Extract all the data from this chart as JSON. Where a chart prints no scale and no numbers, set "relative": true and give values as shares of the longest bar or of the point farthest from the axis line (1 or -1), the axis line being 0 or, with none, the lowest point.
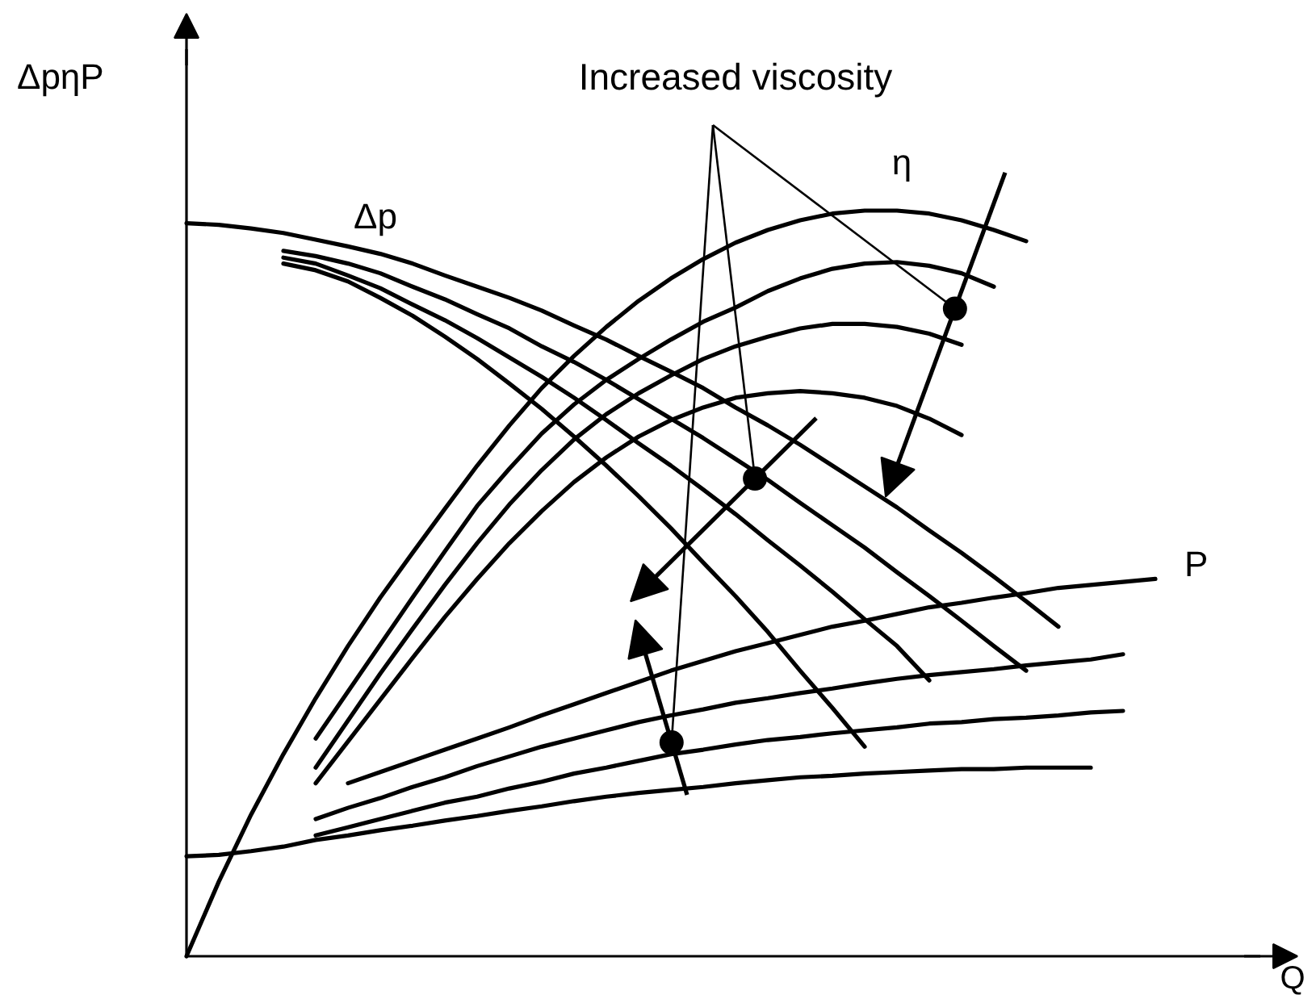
{
  "chart_data": {
    "type": "line",
    "relative": true,
    "ylabel": "ΔpηP",
    "xlabel": "Q",
    "annotations": [
      "Increased viscosity"
    ],
    "grid": false,
    "line_style": "solid",
    "categories": [
      null,
      null,
      null,
      null,
      null,
      null,
      null,
      null,
      null,
      null,
      null,
      null,
      null,
      null,
      null,
      null,
      null,
      null,
      null,
      null,
      null,
      null,
      null,
      null,
      null,
      null,
      null,
      null,
      null,
      null,
      null
    ],
    "series": [
      {
        "name": "Δp",
        "color": "#000000",
        "values": [
          0.983,
          0.981,
          0.976,
          0.97,
          0.961,
          0.952,
          0.942,
          0.929,
          0.913,
          0.898,
          0.883,
          0.866,
          0.846,
          0.827,
          0.805,
          0.784,
          0.762,
          0.736,
          0.712,
          0.686,
          0.658,
          0.63,
          0.602,
          0.571,
          0.541,
          0.509,
          0.476,
          0.442,
          null,
          null,
          null
        ]
      },
      {
        "color": "#000000",
        "values": [
          null,
          null,
          null,
          0.946,
          0.939,
          0.929,
          0.916,
          0.898,
          0.881,
          0.861,
          0.842,
          0.818,
          0.797,
          0.773,
          0.747,
          0.721,
          0.695,
          0.667,
          0.639,
          0.608,
          0.578,
          0.548,
          0.515,
          0.483,
          0.45,
          0.416,
          0.383,
          null,
          null,
          null,
          null
        ]
      },
      {
        "color": "#000000",
        "values": [
          null,
          null,
          null,
          0.937,
          0.929,
          0.913,
          0.896,
          0.874,
          0.853,
          0.829,
          0.803,
          0.777,
          0.749,
          0.719,
          0.688,
          0.658,
          0.626,
          0.593,
          0.558,
          0.524,
          0.489,
          0.452,
          0.416,
          0.37,
          null,
          null,
          null,
          null,
          null,
          null,
          null
        ]
      },
      {
        "color": "#000000",
        "values": [
          null,
          null,
          null,
          0.929,
          0.92,
          0.905,
          0.883,
          0.859,
          0.831,
          0.801,
          0.768,
          0.734,
          0.697,
          0.658,
          0.617,
          0.574,
          0.528,
          0.483,
          0.435,
          0.383,
          0.333,
          0.281,
          null,
          null,
          null,
          null,
          null,
          null,
          null,
          null,
          null
        ]
      },
      {
        "name": "η",
        "color": "#000000",
        "values": [
          0,
          0.1,
          0.19,
          0.271,
          0.346,
          0.416,
          0.481,
          0.541,
          0.6,
          0.658,
          0.712,
          0.762,
          0.805,
          0.844,
          0.879,
          0.909,
          0.935,
          0.957,
          0.974,
          0.987,
          0.996,
          1.0,
          1.0,
          0.996,
          0.987,
          0.974,
          0.959,
          null,
          null,
          null,
          null
        ]
      },
      {
        "color": "#000000",
        "values": [
          null,
          null,
          null,
          null,
          0.292,
          0.355,
          0.418,
          0.481,
          0.543,
          0.604,
          0.654,
          0.701,
          0.74,
          0.773,
          0.801,
          0.827,
          0.851,
          0.87,
          0.892,
          0.909,
          0.922,
          0.929,
          0.931,
          0.926,
          0.916,
          0.898,
          null,
          null,
          null,
          null,
          null
        ]
      },
      {
        "color": "#000000",
        "values": [
          null,
          null,
          null,
          null,
          0.253,
          0.316,
          0.379,
          0.439,
          0.498,
          0.554,
          0.606,
          0.652,
          0.693,
          0.727,
          0.755,
          0.779,
          0.801,
          0.818,
          0.831,
          0.842,
          0.848,
          0.848,
          0.844,
          0.835,
          0.82,
          null,
          null,
          null,
          null,
          null,
          null
        ]
      },
      {
        "color": "#000000",
        "values": [
          null,
          null,
          null,
          null,
          0.232,
          0.288,
          0.344,
          0.4,
          0.455,
          0.506,
          0.554,
          0.597,
          0.636,
          0.669,
          0.697,
          0.719,
          0.736,
          0.749,
          0.755,
          0.758,
          0.755,
          0.749,
          0.738,
          0.721,
          0.699,
          null,
          null,
          null,
          null,
          null,
          null
        ]
      },
      {
        "name": "P",
        "color": "#000000",
        "values": [
          null,
          null,
          null,
          null,
          null,
          0.232,
          0.247,
          0.262,
          0.277,
          0.292,
          0.307,
          0.323,
          0.338,
          0.353,
          0.368,
          0.383,
          0.396,
          0.409,
          0.42,
          0.431,
          0.442,
          0.45,
          0.459,
          0.468,
          0.474,
          0.481,
          0.487,
          0.494,
          0.498,
          0.502,
          0.506
        ]
      },
      {
        "color": "#000000",
        "values": [
          null,
          null,
          null,
          null,
          0.184,
          0.199,
          0.212,
          0.227,
          0.24,
          0.255,
          0.268,
          0.281,
          0.292,
          0.303,
          0.314,
          0.323,
          0.331,
          0.34,
          0.346,
          0.353,
          0.359,
          0.366,
          0.372,
          0.377,
          0.381,
          0.385,
          0.39,
          0.394,
          0.398,
          0.405,
          null
        ]
      },
      {
        "color": "#000000",
        "values": [
          null,
          null,
          null,
          null,
          0.162,
          0.173,
          0.184,
          0.195,
          0.206,
          0.214,
          0.225,
          0.234,
          0.245,
          0.253,
          0.262,
          0.271,
          0.277,
          0.284,
          0.29,
          0.294,
          0.299,
          0.303,
          0.307,
          0.312,
          0.314,
          0.318,
          0.32,
          0.323,
          0.327,
          0.329,
          null
        ]
      },
      {
        "color": "#000000",
        "values": [
          0.134,
          0.136,
          0.141,
          0.147,
          0.156,
          0.162,
          0.169,
          0.175,
          0.182,
          0.188,
          0.195,
          0.201,
          0.208,
          0.214,
          0.219,
          0.223,
          0.227,
          0.232,
          0.236,
          0.24,
          0.242,
          0.245,
          0.247,
          0.249,
          0.251,
          0.251,
          0.253,
          0.253,
          0.253,
          null,
          null
        ]
      }
    ]
  }
}
